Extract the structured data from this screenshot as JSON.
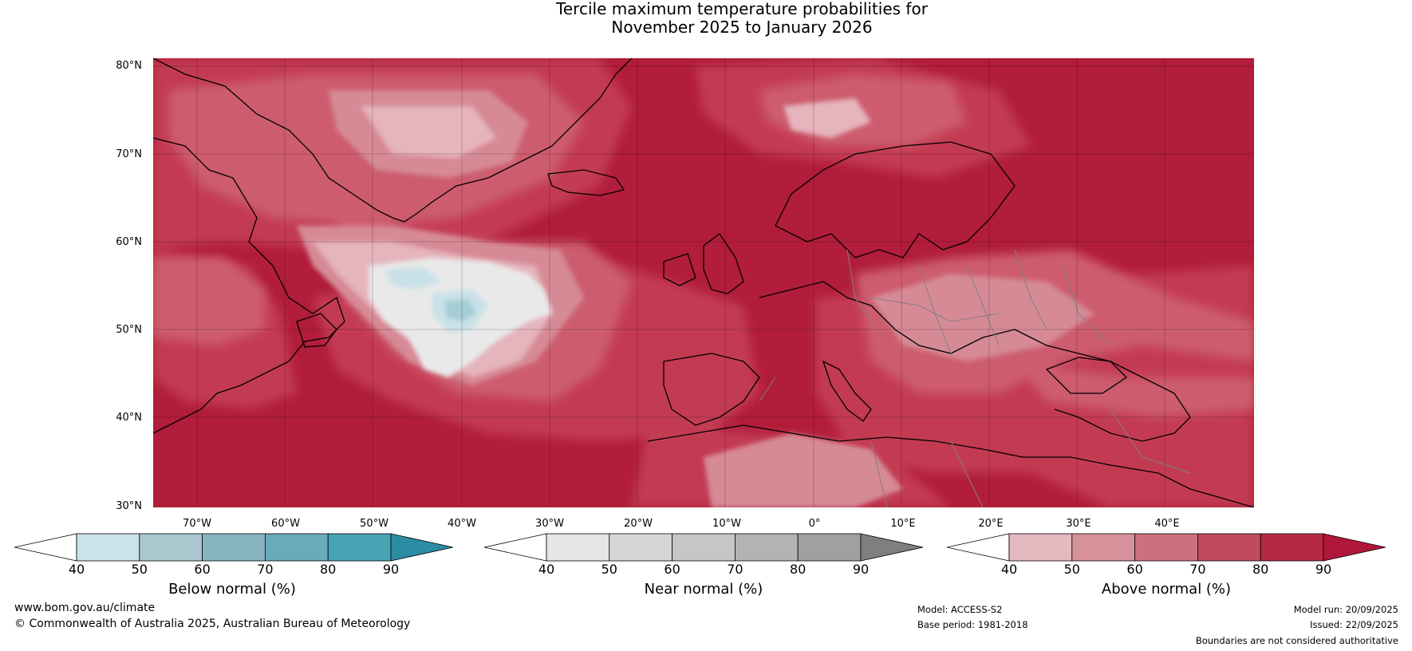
{
  "title": {
    "line1": "Tercile maximum temperature probabilities for",
    "line2": "November 2025 to January 2026"
  },
  "map": {
    "latitude_labels": [
      "80°N",
      "70°N",
      "60°N",
      "50°N",
      "40°N",
      "30°N"
    ],
    "longitude_labels": [
      "70°W",
      "60°W",
      "50°W",
      "40°W",
      "30°W",
      "20°W",
      "10°W",
      "0°",
      "10°E",
      "20°E",
      "30°E",
      "40°E"
    ],
    "colors": {
      "above_90": "#b11d3a",
      "above_80": "#c33a52",
      "above_70": "#cd5d6e",
      "above_60": "#d68a96",
      "above_50": "#e5b4bc",
      "near": "#e9e9e9",
      "below_50": "#c9e1e8",
      "below_60": "#a6ccd6",
      "coast": "#000000",
      "border": "#808080"
    }
  },
  "legends": [
    {
      "label": "Below normal (%)",
      "ticks": [
        "40",
        "50",
        "60",
        "70",
        "80",
        "90"
      ],
      "colors": [
        "#ffffff",
        "#cce2e9",
        "#a9c8d0",
        "#89b5c3",
        "#6aabbb",
        "#47a3b4",
        "#2b8ca3"
      ]
    },
    {
      "label": "Near normal (%)",
      "ticks": [
        "40",
        "50",
        "60",
        "70",
        "80",
        "90"
      ],
      "colors": [
        "#ffffff",
        "#e6e6e6",
        "#d6d6d6",
        "#c6c6c6",
        "#b3b3b3",
        "#a0a0a0",
        "#7f7f7f"
      ]
    },
    {
      "label": "Above normal (%)",
      "ticks": [
        "40",
        "50",
        "60",
        "70",
        "80",
        "90"
      ],
      "colors": [
        "#ffffff",
        "#e6b8c0",
        "#d8929c",
        "#cd707e",
        "#c24a5d",
        "#b52a42",
        "#b0173a"
      ]
    }
  ],
  "footer": {
    "website": "www.bom.gov.au/climate",
    "copyright": "© Commonwealth of Australia 2025, Australian Bureau of Meteorology",
    "model": "Model: ACCESS-S2",
    "base_period": "Base period: 1981-2018",
    "model_run": "Model run: 20/09/2025",
    "issued": "Issued: 22/09/2025",
    "disclaimer": "Boundaries are not considered authoritative"
  }
}
